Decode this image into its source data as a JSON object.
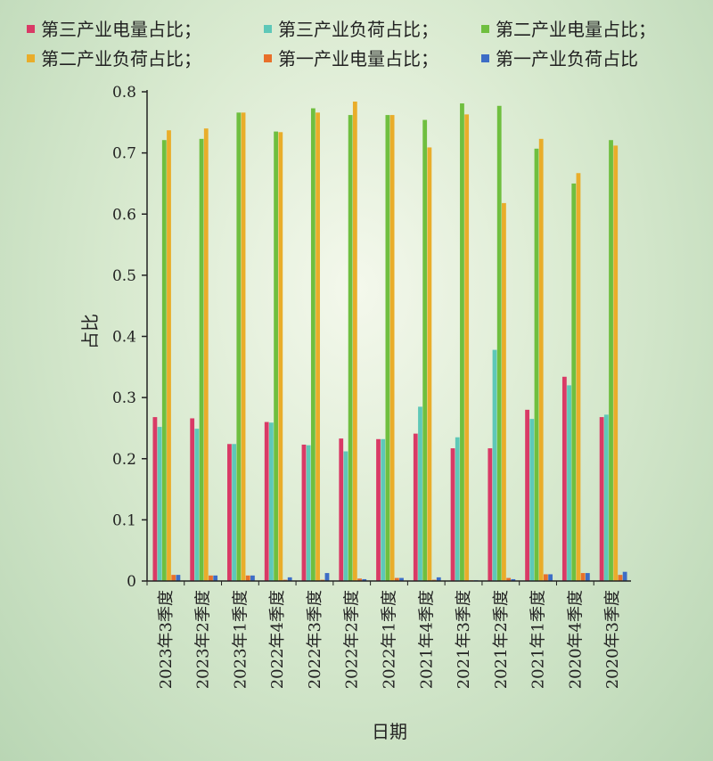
{
  "chart_data": {
    "type": "bar",
    "xlabel": "日期",
    "ylabel": "占比",
    "ylim": [
      0,
      0.8
    ],
    "yticks": [
      "0",
      "0.1",
      "0.2",
      "0.3",
      "0.4",
      "0.5",
      "0.6",
      "0.7",
      "0.8"
    ],
    "grid": false,
    "legend_position": "top",
    "categories": [
      "2023年3季度",
      "2023年2季度",
      "2023年1季度",
      "2022年4季度",
      "2022年3季度",
      "2022年2季度",
      "2022年1季度",
      "2021年4季度",
      "2021年3季度",
      "2021年2季度",
      "2021年1季度",
      "2020年4季度",
      "2020年3季度"
    ],
    "series": [
      {
        "name": "第三产业电量占比；",
        "color": "#d93a66",
        "values": [
          0.268,
          0.266,
          0.224,
          0.26,
          0.223,
          0.233,
          0.232,
          0.241,
          0.217,
          0.217,
          0.28,
          0.334,
          0.268
        ]
      },
      {
        "name": "第三产业负荷占比；",
        "color": "#5ec8b8",
        "values": [
          0.252,
          0.249,
          0.224,
          0.259,
          0.222,
          0.212,
          0.232,
          0.285,
          0.235,
          0.378,
          0.265,
          0.32,
          0.272
        ]
      },
      {
        "name": "第二产业电量占比；",
        "color": "#6fbf3f",
        "values": [
          0.721,
          0.723,
          0.766,
          0.735,
          0.773,
          0.762,
          0.762,
          0.754,
          0.781,
          0.777,
          0.707,
          0.65,
          0.721
        ]
      },
      {
        "name": "第二产业负荷占比；",
        "color": "#e9ad2a",
        "values": [
          0.737,
          0.74,
          0.766,
          0.734,
          0.766,
          0.784,
          0.762,
          0.709,
          0.763,
          0.618,
          0.723,
          0.667,
          0.712
        ]
      },
      {
        "name": "第一产业电量占比；",
        "color": "#e8702a",
        "values": [
          0.01,
          0.009,
          0.009,
          0.002,
          0.002,
          0.004,
          0.005,
          0.002,
          0.001,
          0.005,
          0.011,
          0.013,
          0.01
        ]
      },
      {
        "name": "第一产业负荷占比",
        "color": "#3d6dc6",
        "values": [
          0.01,
          0.009,
          0.009,
          0.006,
          0.013,
          0.003,
          0.005,
          0.006,
          0.001,
          0.003,
          0.011,
          0.013,
          0.015
        ]
      }
    ]
  }
}
